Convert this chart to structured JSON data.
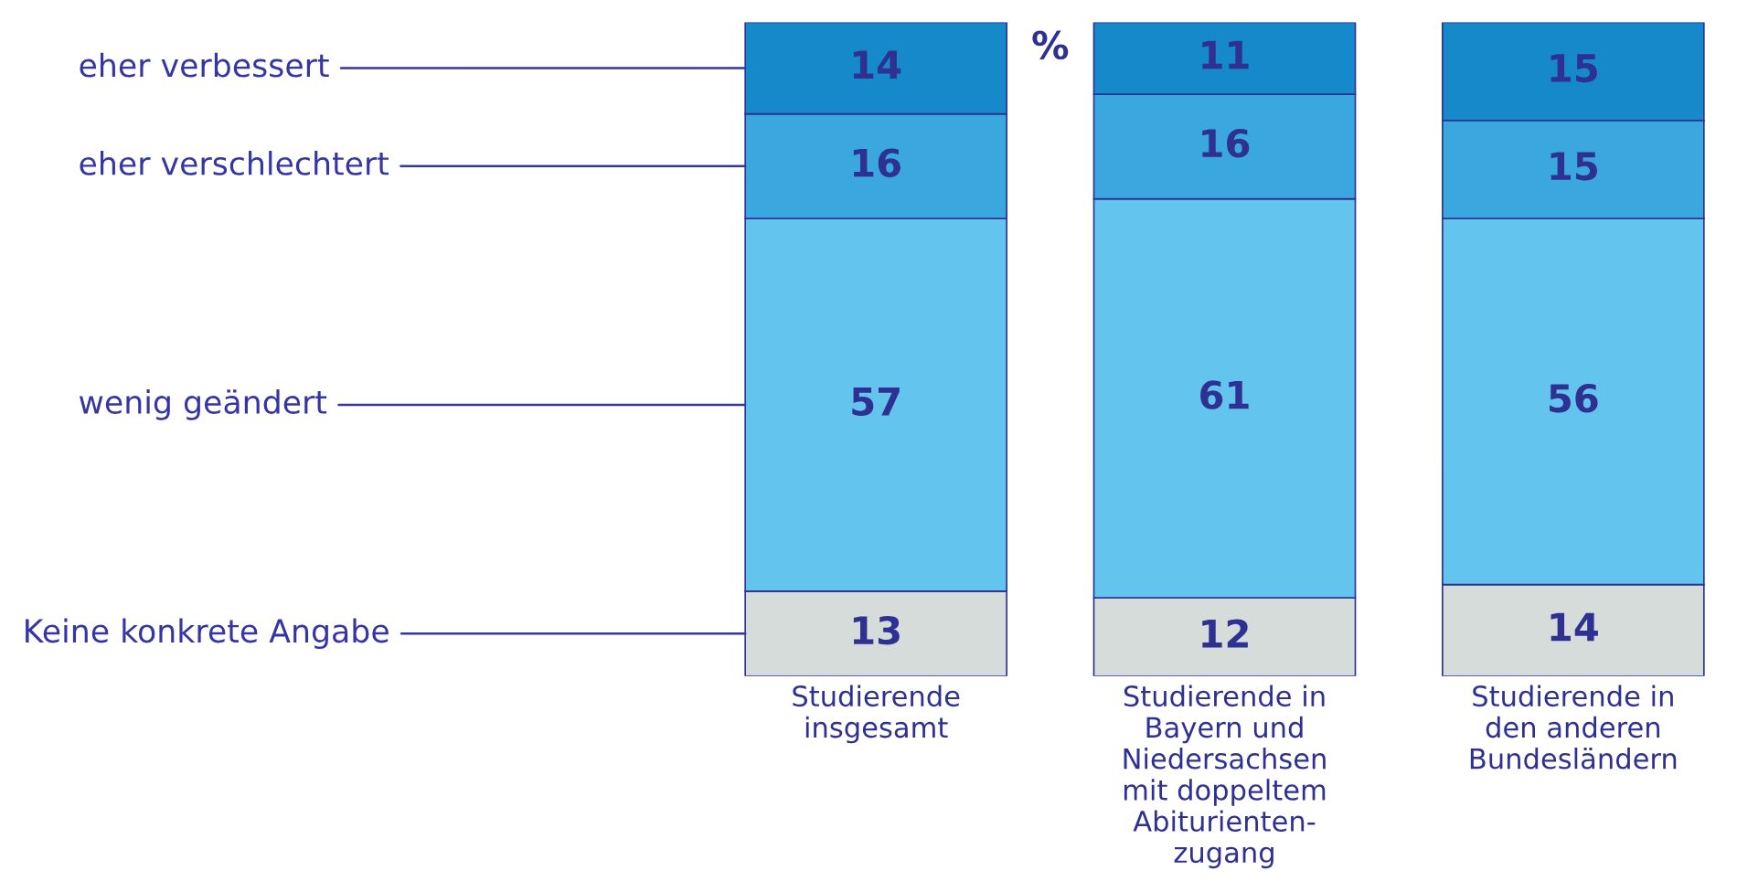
{
  "chart_data": {
    "type": "bar",
    "stacked": true,
    "categories": [
      "Studierende\ninsgesamt",
      "Studierende in\nBayern und\nNiedersachsen\nmit doppeltem\nAbiturienten-\nzugang",
      "Studierende in\nden anderen\nBundesländern"
    ],
    "series": [
      {
        "name": "Keine konkrete Angabe",
        "color": "#d6dcd9",
        "values": [
          13,
          12,
          14
        ]
      },
      {
        "name": "wenig geändert",
        "color": "#63c4ee",
        "values": [
          57,
          61,
          56
        ]
      },
      {
        "name": "eher verschlechtert",
        "color": "#3aa8de",
        "values": [
          16,
          16,
          15
        ]
      },
      {
        "name": "eher verbessert",
        "color": "#1589ca",
        "values": [
          14,
          11,
          15
        ]
      }
    ],
    "ylim": [
      0,
      100
    ],
    "data_labels": true,
    "legend": false,
    "grid": false,
    "tick_labels": "x",
    "annotations": [
      "%"
    ]
  }
}
